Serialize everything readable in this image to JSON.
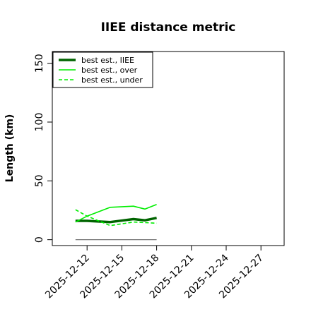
{
  "chart_data": {
    "type": "line",
    "title": "IIEE distance metric",
    "xlabel": "",
    "ylabel": "Length (km)",
    "x": [
      "2025-12-11",
      "2025-12-12",
      "2025-12-14",
      "2025-12-16",
      "2025-12-17",
      "2025-12-18"
    ],
    "xlim": [
      "2025-12-09",
      "2025-12-29"
    ],
    "ylim": [
      -5,
      160
    ],
    "x_ticks": [
      "2025-12-12",
      "2025-12-15",
      "2025-12-18",
      "2025-12-21",
      "2025-12-24",
      "2025-12-27"
    ],
    "y_ticks": [
      0,
      50,
      100,
      150
    ],
    "grid": false,
    "legend_position": "top-left",
    "series": [
      {
        "name": "best est., IIEE",
        "color": "#006400",
        "style": "solid-thick",
        "values": [
          16,
          16,
          15,
          17.5,
          16.5,
          18.5
        ]
      },
      {
        "name": "best est., over",
        "color": "#00ee00",
        "style": "solid",
        "values": [
          15,
          20,
          27.5,
          28.5,
          26,
          30
        ]
      },
      {
        "name": "best est., under",
        "color": "#00ee00",
        "style": "dashed",
        "values": [
          25.5,
          20,
          12,
          15,
          14.5,
          14
        ]
      },
      {
        "name": "",
        "color": "#666666",
        "style": "solid-thin",
        "values": [
          0,
          0,
          0,
          0,
          0,
          0
        ]
      }
    ]
  }
}
